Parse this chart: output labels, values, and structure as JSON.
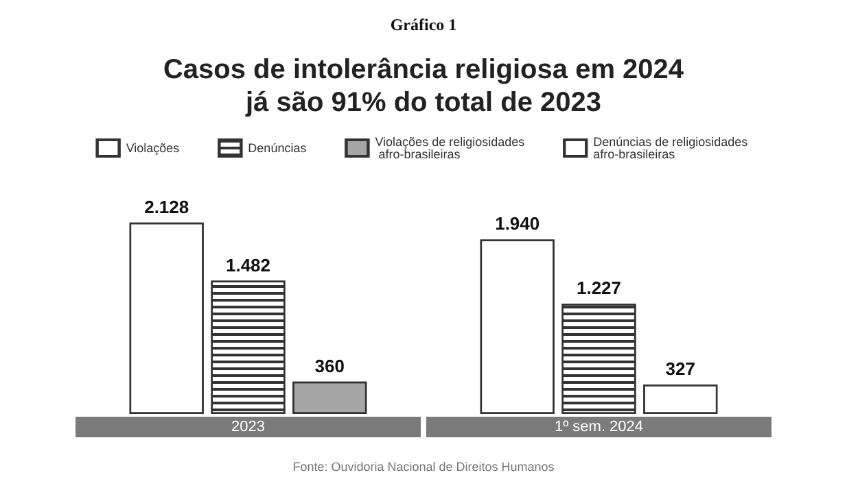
{
  "chart_data": {
    "type": "bar",
    "title": "Casos de intolerância religiosa em 2024\njá são 91% do total de 2023",
    "categories": [
      "2023",
      "1º sem. 2024"
    ],
    "series": [
      {
        "name": "Violações",
        "color": "#ffffff",
        "values": [
          2128,
          1940
        ],
        "value_labels": [
          "2.128",
          "1.940"
        ]
      },
      {
        "name": "Denúncias",
        "color": "#ffffff",
        "values": [
          1482,
          1227
        ],
        "value_labels": [
          "1.482",
          "1.227"
        ]
      },
      {
        "name": "Violações de religiosidades afro-brasileiras",
        "color": "#a6a6a6",
        "values": [
          360,
          null
        ]
      },
      {
        "name": "Denúncias de religiosidades afro-brasileiras",
        "color": "#ffffff",
        "values": [
          null,
          327
        ]
      }
    ],
    "data_labels": true,
    "legend": "top",
    "grid": false,
    "annotations": [
      "Gráfico 1",
      "Fonte: Ouvidoria Nacional de Direitos Humanos"
    ]
  }
}
